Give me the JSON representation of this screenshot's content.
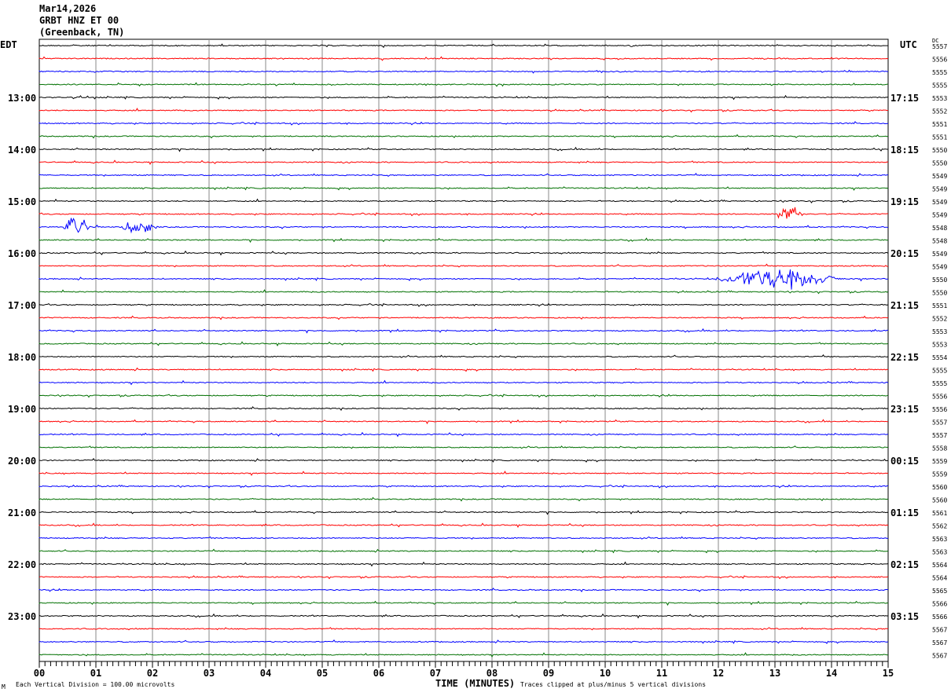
{
  "header": {
    "date": "Mar14,2026",
    "station": "GRBT HNZ ET 00",
    "location": "(Greenback, TN)"
  },
  "left_axis_label": "EDT",
  "right_axis_label": "UTC",
  "dc_label": "DC",
  "footer": {
    "scale_note": "Each Vertical Division =  100.00 microvolts",
    "xlabel": "TIME (MINUTES)",
    "clip_note": "Traces clipped at plus/minus 5 vertical divisions",
    "corner_mark": "M"
  },
  "chart_data": {
    "type": "line",
    "subtype": "helicorder",
    "xlabel": "TIME (MINUTES)",
    "xlim": [
      0,
      15
    ],
    "x_ticks": [
      "00",
      "01",
      "02",
      "03",
      "04",
      "05",
      "06",
      "07",
      "08",
      "09",
      "10",
      "11",
      "12",
      "13",
      "14",
      "15"
    ],
    "rows_per_hour": 4,
    "row_count": 48,
    "trace_colors": [
      "#000000",
      "#ff0000",
      "#0000ff",
      "#007000"
    ],
    "left_hour_labels": [
      "13:00",
      "14:00",
      "15:00",
      "16:00",
      "17:00",
      "18:00",
      "19:00",
      "20:00",
      "21:00",
      "22:00",
      "23:00"
    ],
    "right_hour_labels": [
      "17:15",
      "18:15",
      "19:15",
      "20:15",
      "21:15",
      "22:15",
      "23:15",
      "00:15",
      "01:15",
      "02:15",
      "03:15"
    ],
    "dc_offsets": [
      5557,
      5556,
      5555,
      5555,
      5553,
      5552,
      5551,
      5551,
      5550,
      5550,
      5549,
      5549,
      5549,
      5549,
      5548,
      5548,
      5549,
      5549,
      5550,
      5550,
      5551,
      5552,
      5553,
      5553,
      5554,
      5555,
      5555,
      5556,
      5556,
      5557,
      5557,
      5558,
      5559,
      5559,
      5560,
      5560,
      5561,
      5562,
      5563,
      5563,
      5564,
      5564,
      5565,
      5566,
      5566,
      5567,
      5567,
      5567
    ],
    "events": [
      {
        "row": 13,
        "start_min": 13.0,
        "end_min": 13.5,
        "amplitude_div": 0.8
      },
      {
        "row": 14,
        "start_min": 0.4,
        "end_min": 0.9,
        "amplitude_div": 0.9
      },
      {
        "row": 14,
        "start_min": 1.4,
        "end_min": 2.1,
        "amplitude_div": 0.5
      },
      {
        "row": 18,
        "start_min": 11.9,
        "end_min": 14.2,
        "amplitude_div": 0.7
      },
      {
        "row": 18,
        "start_min": 13.25,
        "end_min": 13.3,
        "amplitude_div": 2.2
      }
    ],
    "grid": true,
    "scale_microvolts_per_division": 100.0,
    "clip_divisions": 5
  }
}
